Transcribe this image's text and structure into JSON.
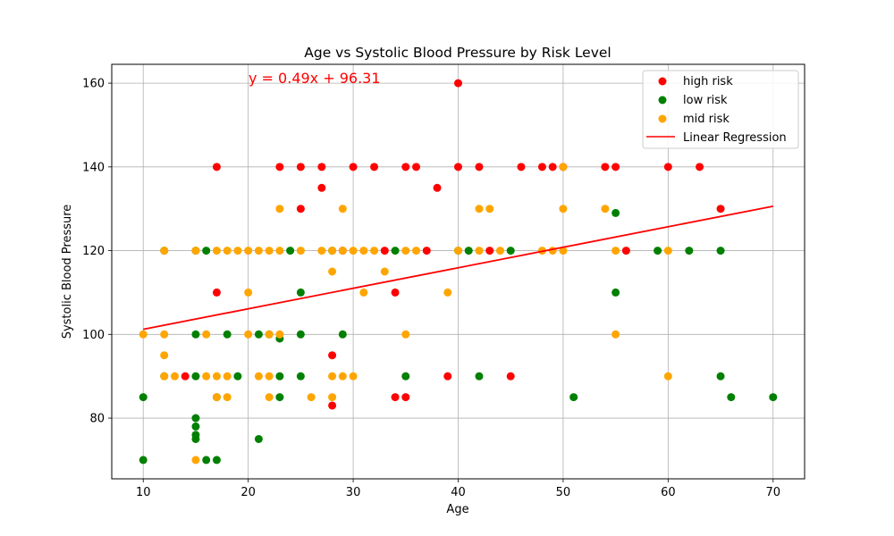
{
  "chart_data": {
    "type": "scatter",
    "title": "Age vs Systolic Blood Pressure by Risk Level",
    "xlabel": "Age",
    "ylabel": "Systolic Blood Pressure",
    "xlim": [
      7,
      73
    ],
    "ylim": [
      65.5,
      164.5
    ],
    "xticks": [
      10,
      20,
      30,
      40,
      50,
      60,
      70
    ],
    "yticks": [
      80,
      100,
      120,
      140,
      160
    ],
    "grid": true,
    "legend_position": "top-right",
    "equation": "y = 0.49x + 96.31",
    "series": [
      {
        "name": "high risk",
        "color": "#ff0000",
        "points": [
          [
            17,
            140
          ],
          [
            17,
            110
          ],
          [
            14,
            90
          ],
          [
            23,
            140
          ],
          [
            25,
            140
          ],
          [
            25,
            130
          ],
          [
            27,
            140
          ],
          [
            27,
            135
          ],
          [
            28,
            95
          ],
          [
            28,
            83
          ],
          [
            29,
            120
          ],
          [
            30,
            140
          ],
          [
            32,
            140
          ],
          [
            33,
            120
          ],
          [
            34,
            110
          ],
          [
            34,
            85
          ],
          [
            35,
            140
          ],
          [
            35,
            85
          ],
          [
            36,
            140
          ],
          [
            37,
            120
          ],
          [
            38,
            135
          ],
          [
            39,
            90
          ],
          [
            40,
            160
          ],
          [
            40,
            140
          ],
          [
            42,
            140
          ],
          [
            43,
            120
          ],
          [
            45,
            90
          ],
          [
            46,
            140
          ],
          [
            48,
            140
          ],
          [
            49,
            140
          ],
          [
            50,
            140
          ],
          [
            54,
            140
          ],
          [
            55,
            140
          ],
          [
            56,
            120
          ],
          [
            60,
            140
          ],
          [
            63,
            140
          ],
          [
            65,
            130
          ]
        ]
      },
      {
        "name": "low risk",
        "color": "#008000",
        "points": [
          [
            10,
            85
          ],
          [
            10,
            70
          ],
          [
            12,
            120
          ],
          [
            12,
            90
          ],
          [
            15,
            120
          ],
          [
            15,
            100
          ],
          [
            15,
            90
          ],
          [
            15,
            80
          ],
          [
            15,
            78
          ],
          [
            15,
            76
          ],
          [
            15,
            75
          ],
          [
            16,
            120
          ],
          [
            16,
            70
          ],
          [
            17,
            70
          ],
          [
            17,
            85
          ],
          [
            18,
            100
          ],
          [
            19,
            90
          ],
          [
            21,
            100
          ],
          [
            21,
            75
          ],
          [
            22,
            100
          ],
          [
            23,
            99
          ],
          [
            23,
            90
          ],
          [
            23,
            85
          ],
          [
            24,
            120
          ],
          [
            25,
            110
          ],
          [
            25,
            100
          ],
          [
            25,
            90
          ],
          [
            28,
            120
          ],
          [
            29,
            100
          ],
          [
            34,
            120
          ],
          [
            35,
            90
          ],
          [
            40,
            120
          ],
          [
            41,
            120
          ],
          [
            42,
            90
          ],
          [
            45,
            120
          ],
          [
            51,
            85
          ],
          [
            55,
            129
          ],
          [
            55,
            110
          ],
          [
            59,
            120
          ],
          [
            62,
            120
          ],
          [
            65,
            120
          ],
          [
            65,
            90
          ],
          [
            66,
            85
          ],
          [
            70,
            85
          ]
        ]
      },
      {
        "name": "mid risk",
        "color": "#ffa500",
        "points": [
          [
            10,
            100
          ],
          [
            12,
            120
          ],
          [
            12,
            100
          ],
          [
            12,
            95
          ],
          [
            12,
            90
          ],
          [
            13,
            90
          ],
          [
            15,
            120
          ],
          [
            15,
            70
          ],
          [
            16,
            100
          ],
          [
            16,
            90
          ],
          [
            17,
            120
          ],
          [
            17,
            90
          ],
          [
            17,
            85
          ],
          [
            18,
            120
          ],
          [
            18,
            90
          ],
          [
            18,
            85
          ],
          [
            19,
            120
          ],
          [
            20,
            120
          ],
          [
            20,
            110
          ],
          [
            20,
            100
          ],
          [
            21,
            120
          ],
          [
            21,
            90
          ],
          [
            22,
            120
          ],
          [
            22,
            100
          ],
          [
            22,
            90
          ],
          [
            22,
            85
          ],
          [
            23,
            130
          ],
          [
            23,
            120
          ],
          [
            23,
            100
          ],
          [
            25,
            120
          ],
          [
            26,
            85
          ],
          [
            27,
            120
          ],
          [
            28,
            120
          ],
          [
            28,
            115
          ],
          [
            28,
            90
          ],
          [
            28,
            85
          ],
          [
            29,
            130
          ],
          [
            29,
            120
          ],
          [
            29,
            90
          ],
          [
            30,
            120
          ],
          [
            30,
            90
          ],
          [
            31,
            120
          ],
          [
            31,
            110
          ],
          [
            32,
            120
          ],
          [
            33,
            115
          ],
          [
            35,
            120
          ],
          [
            35,
            100
          ],
          [
            36,
            120
          ],
          [
            39,
            110
          ],
          [
            40,
            120
          ],
          [
            42,
            130
          ],
          [
            42,
            120
          ],
          [
            43,
            130
          ],
          [
            44,
            120
          ],
          [
            48,
            120
          ],
          [
            49,
            120
          ],
          [
            50,
            140
          ],
          [
            50,
            130
          ],
          [
            50,
            120
          ],
          [
            54,
            130
          ],
          [
            55,
            120
          ],
          [
            55,
            100
          ],
          [
            60,
            120
          ],
          [
            60,
            90
          ]
        ]
      }
    ],
    "regression": {
      "name": "Linear Regression",
      "color": "#ff0000",
      "slope": 0.49,
      "intercept": 96.31,
      "x_range": [
        10,
        70
      ]
    }
  }
}
